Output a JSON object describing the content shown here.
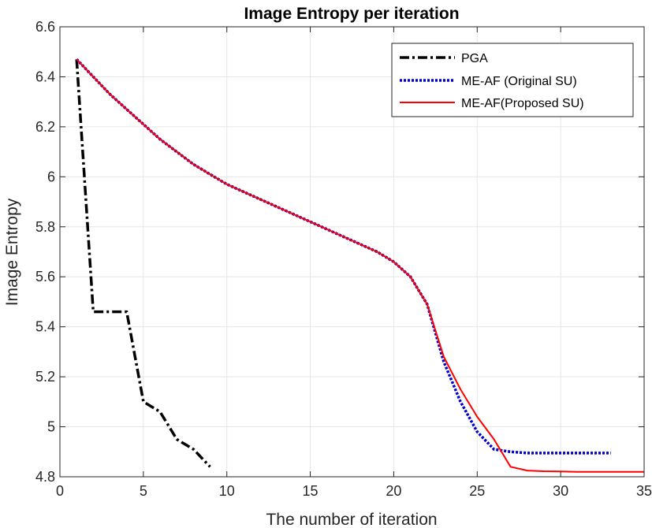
{
  "chart_data": {
    "type": "line",
    "title": "Image Entropy per iteration",
    "xlabel": "The number of iteration",
    "ylabel": "Image Entropy",
    "xlim": [
      0,
      35
    ],
    "ylim": [
      4.8,
      6.6
    ],
    "xticks": [
      "0",
      "5",
      "10",
      "15",
      "20",
      "25",
      "30",
      "35"
    ],
    "yticks": [
      "4.8",
      "5",
      "5.2",
      "5.4",
      "5.6",
      "5.8",
      "6",
      "6.2",
      "6.4",
      "6.6"
    ],
    "grid": true,
    "legend_position": "top-right",
    "series": [
      {
        "name": "PGA",
        "color": "#000000",
        "style": "dash-dot",
        "x": [
          1,
          2,
          3,
          4,
          5,
          6,
          7,
          8,
          9
        ],
        "y": [
          6.47,
          5.46,
          5.46,
          5.46,
          5.1,
          5.06,
          4.95,
          4.91,
          4.84
        ]
      },
      {
        "name": "ME-AF (Original SU)",
        "color": "#0000cc",
        "style": "dotted",
        "x": [
          1,
          2,
          3,
          4,
          5,
          6,
          7,
          8,
          9,
          10,
          11,
          12,
          13,
          14,
          15,
          16,
          17,
          18,
          19,
          20,
          21,
          22,
          23,
          24,
          25,
          26,
          27,
          28,
          29,
          30,
          31,
          32,
          33
        ],
        "y": [
          6.47,
          6.4,
          6.33,
          6.27,
          6.21,
          6.15,
          6.1,
          6.05,
          6.01,
          5.97,
          5.94,
          5.91,
          5.88,
          5.85,
          5.82,
          5.79,
          5.76,
          5.73,
          5.7,
          5.66,
          5.6,
          5.49,
          5.26,
          5.1,
          4.98,
          4.91,
          4.9,
          4.895,
          4.895,
          4.895,
          4.895,
          4.895,
          4.895
        ]
      },
      {
        "name": "ME-AF(Proposed SU)",
        "color": "#ff0000",
        "style": "solid",
        "x": [
          1,
          2,
          3,
          4,
          5,
          6,
          7,
          8,
          9,
          10,
          11,
          12,
          13,
          14,
          15,
          16,
          17,
          18,
          19,
          20,
          21,
          22,
          23,
          24,
          25,
          26,
          27,
          28,
          29,
          30,
          31,
          32,
          33,
          34,
          35
        ],
        "y": [
          6.47,
          6.4,
          6.33,
          6.27,
          6.21,
          6.15,
          6.1,
          6.05,
          6.01,
          5.97,
          5.94,
          5.91,
          5.88,
          5.85,
          5.82,
          5.79,
          5.76,
          5.73,
          5.7,
          5.66,
          5.6,
          5.49,
          5.28,
          5.15,
          5.04,
          4.95,
          4.84,
          4.825,
          4.822,
          4.821,
          4.82,
          4.82,
          4.82,
          4.82,
          4.82
        ]
      }
    ]
  }
}
